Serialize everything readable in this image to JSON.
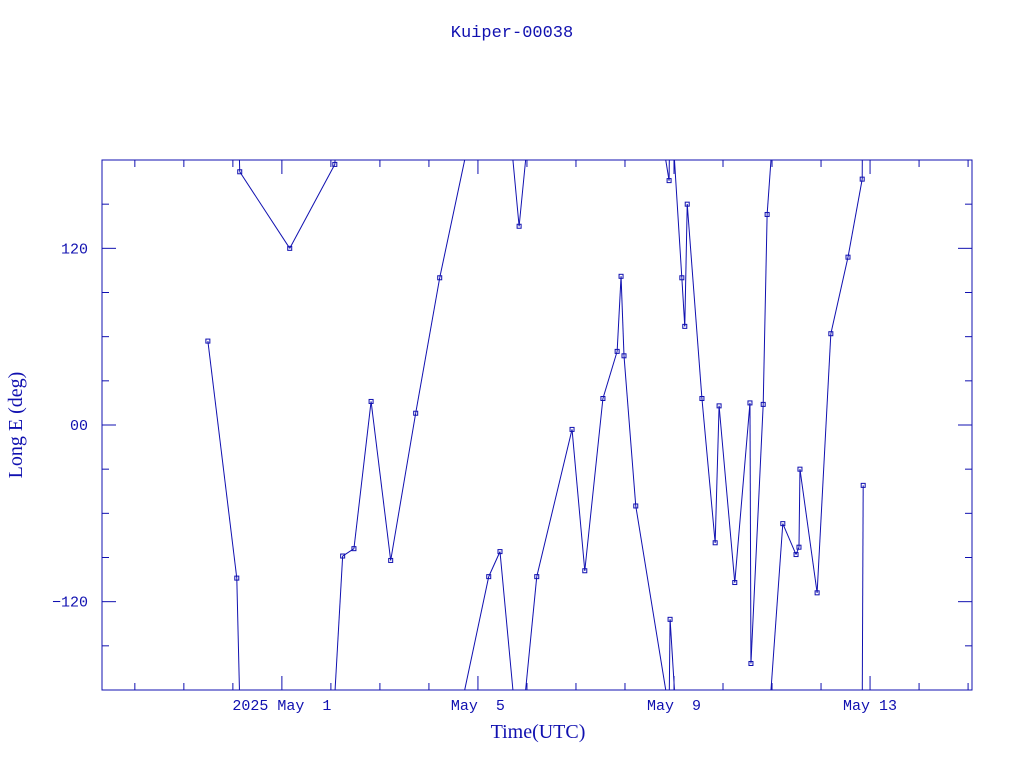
{
  "chart_data": {
    "type": "line",
    "title": "Kuiper-00038",
    "x_label": "Time(UTC)",
    "y_label": "Long E (deg)",
    "color": "#1010b0",
    "xlim": [
      -2.67,
      15.08
    ],
    "xticks": [
      {
        "value": 1,
        "label": "2025 May  1"
      },
      {
        "value": 5,
        "label": "May  5"
      },
      {
        "value": 9,
        "label": "May  9"
      },
      {
        "value": 13,
        "label": "May 13"
      }
    ],
    "xticks_minor": [
      -2,
      -1,
      0,
      2,
      3,
      4,
      6,
      7,
      8,
      10,
      11,
      12,
      14,
      15
    ],
    "ylim": [
      -180,
      180
    ],
    "yticks": [
      {
        "value": -120,
        "label": "−120"
      },
      {
        "value": 0,
        "label": "00"
      },
      120
    ],
    "yticks_minor": [
      -150,
      -90,
      -60,
      -30,
      30,
      60,
      90,
      150
    ],
    "wrap": true,
    "series": [
      {
        "name": "Kuiper-00038",
        "color": "#1010b0",
        "x": [
          -0.51,
          0.08,
          0.14,
          1.16,
          2.08,
          2.24,
          2.47,
          2.82,
          3.22,
          3.73,
          4.22,
          5.22,
          5.45,
          5.84,
          6.2,
          6.92,
          7.18,
          7.55,
          7.84,
          7.92,
          7.98,
          8.22,
          8.9,
          8.92,
          9.16,
          9.22,
          9.27,
          9.57,
          9.84,
          9.92,
          10.24,
          10.55,
          10.57,
          10.82,
          10.9,
          11.22,
          11.49,
          11.55,
          11.57,
          11.92,
          12.2,
          12.55,
          12.84,
          12.86
        ],
        "values": [
          57,
          -104,
          172,
          120,
          177,
          -89,
          -84,
          16,
          -92,
          8,
          100,
          -103,
          -86,
          135,
          -103,
          -3,
          -99,
          18,
          50,
          101,
          47,
          -55,
          166,
          -132,
          100,
          67,
          150,
          18,
          -80,
          13,
          -107,
          15,
          -162,
          14,
          143,
          -67,
          -88,
          -83,
          -30,
          -114,
          62,
          114,
          167,
          -41
        ]
      }
    ]
  }
}
